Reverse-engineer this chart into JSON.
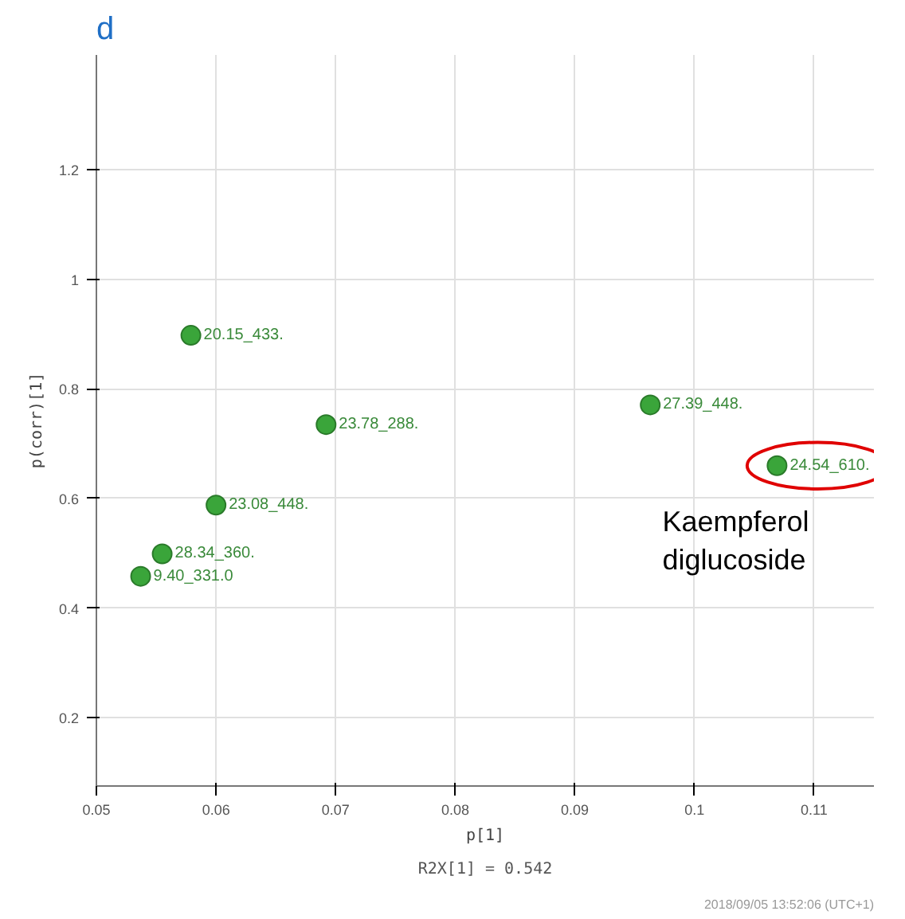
{
  "chart_data": {
    "type": "scatter",
    "title": "d",
    "xlabel": "p[1]",
    "ylabel": "p(corr)[1]",
    "x": [
      0.0579,
      0.0692,
      0.0963,
      0.1069,
      0.06,
      0.0555,
      0.0537
    ],
    "series": [
      {
        "color": "#3aa53a",
        "values": [
          0.898,
          0.735,
          0.771,
          0.66,
          0.588,
          0.499,
          0.458
        ]
      }
    ],
    "xlim": [
      0.05,
      0.115
    ],
    "ylim": [
      0.075,
      1.41
    ],
    "xticks": [
      0.05,
      0.06,
      0.07,
      0.08,
      0.09,
      0.1,
      0.11
    ],
    "yticks": [
      0.2,
      0.4,
      0.6,
      0.8,
      1,
      1.2
    ],
    "grid": true,
    "marker": "circle",
    "annotations": [
      {
        "text": "20.15_433.",
        "x": 0.0579,
        "y": 0.898
      },
      {
        "text": "23.78_288.",
        "x": 0.0692,
        "y": 0.735
      },
      {
        "text": "27.39_448.",
        "x": 0.0963,
        "y": 0.771
      },
      {
        "text": "24.54_610.",
        "x": 0.1069,
        "y": 0.66
      },
      {
        "text": "23.08_448.",
        "x": 0.06,
        "y": 0.588
      },
      {
        "text": "28.34_360.",
        "x": 0.0555,
        "y": 0.499
      },
      {
        "text": "9.40_331.0",
        "x": 0.0537,
        "y": 0.458
      },
      {
        "text": "Kaempferol\ndiglucoside",
        "x": 0.1069,
        "y": 0.66
      },
      "R2X[1] = 0.542",
      "2018/09/05 13:52:06 (UTC+1)"
    ]
  }
}
